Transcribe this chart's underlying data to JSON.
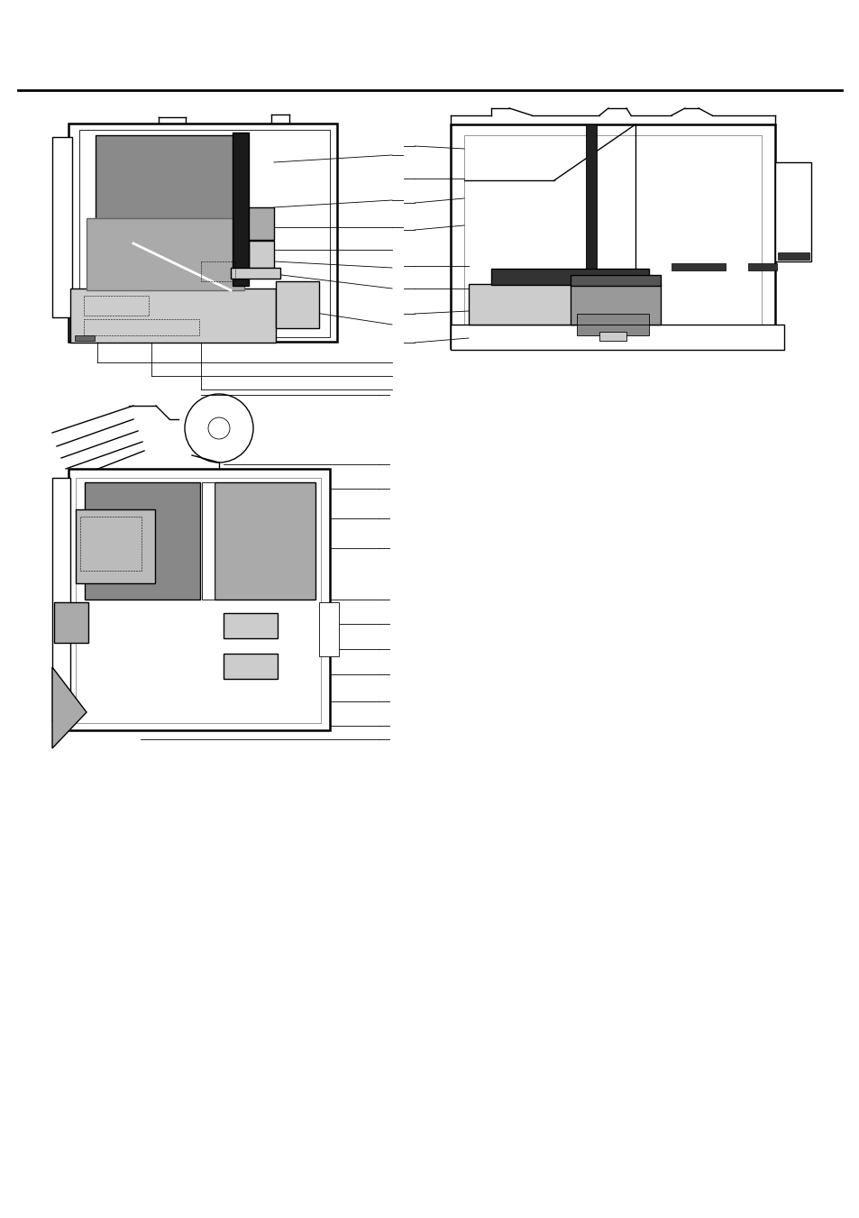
{
  "background_color": "#ffffff",
  "page_width": 9.54,
  "page_height": 13.51
}
